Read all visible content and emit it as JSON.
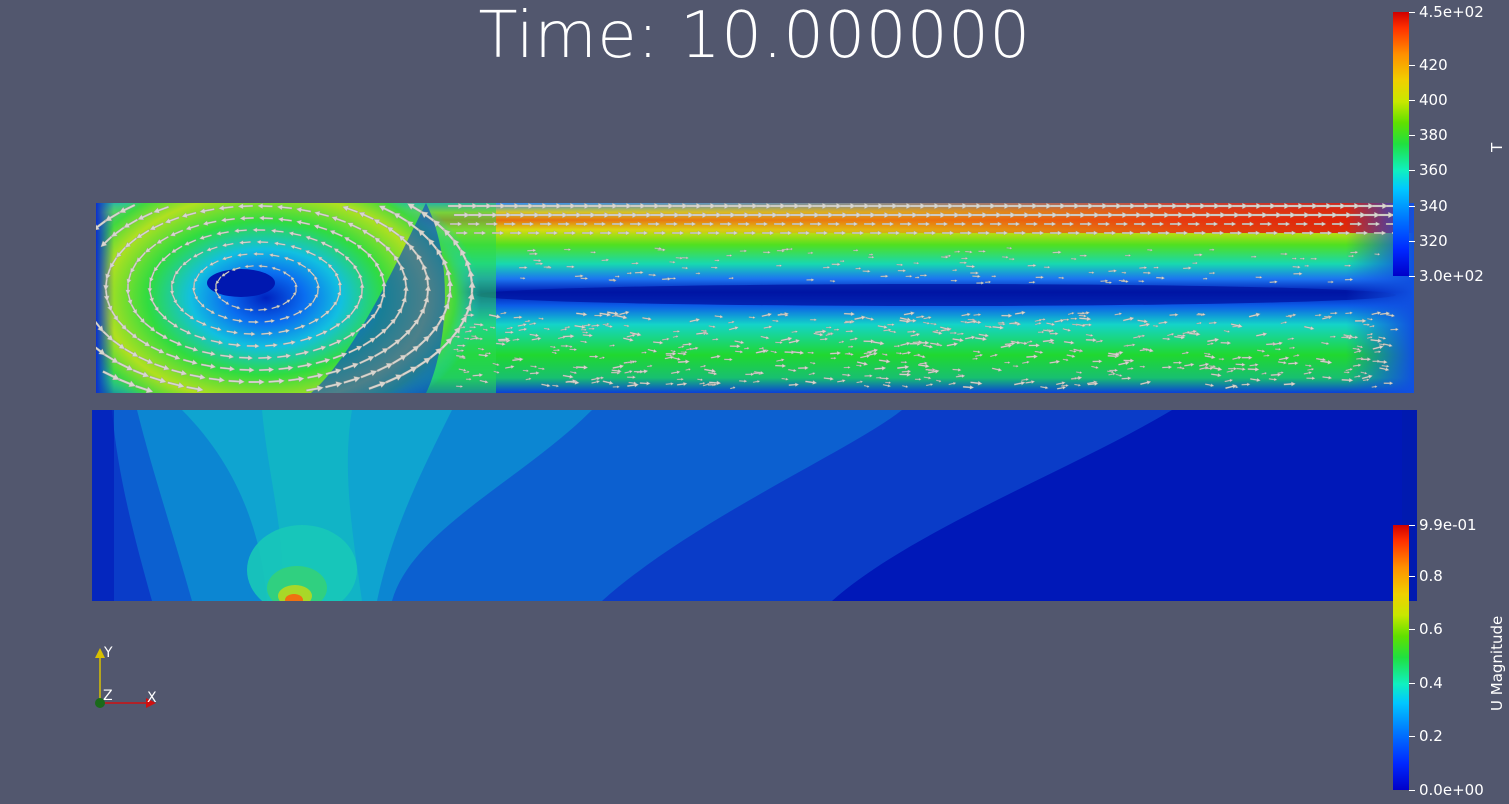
{
  "time_label": "Time: 10.000000",
  "colorbar_T": {
    "title": "T",
    "ticks": [
      "4.5e+02",
      "420",
      "400",
      "380",
      "360",
      "340",
      "320",
      "3.0e+02"
    ],
    "tick_values": [
      450,
      420,
      400,
      380,
      360,
      340,
      320,
      300
    ],
    "range": [
      300,
      450
    ]
  },
  "colorbar_U": {
    "title": "U Magnitude",
    "ticks": [
      "9.9e-01",
      "0.8",
      "0.6",
      "0.4",
      "0.2",
      "0.0e+00"
    ],
    "tick_values": [
      0.99,
      0.8,
      0.6,
      0.4,
      0.2,
      0.0
    ],
    "range": [
      0.0,
      0.99
    ]
  },
  "axes": {
    "x": "X",
    "y": "Y",
    "z": "Z"
  },
  "colors": {
    "background": "#52576e",
    "x_axis": "#d01010",
    "y_axis": "#d8c000",
    "z_axis": "#1a6a1a",
    "arrow": "#d8d6d0"
  }
}
